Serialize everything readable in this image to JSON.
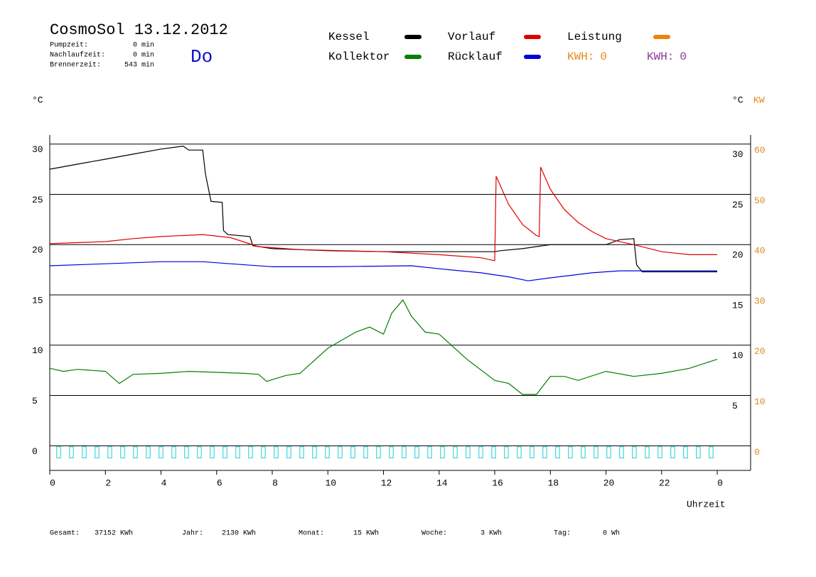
{
  "chart_data": {
    "type": "line",
    "title": "CosmoSol 13.12.2012",
    "weekday": "Do",
    "stats": [
      {
        "label": "Pumpzeit:",
        "value": "0 min"
      },
      {
        "label": "Nachlaufzeit:",
        "value": "0 min"
      },
      {
        "label": "Brennerzeit:",
        "value": "543 min"
      }
    ],
    "y_label": "°C",
    "y_label_right": "°C",
    "y2_label": "KW",
    "x_label": "Uhrzeit",
    "xlim": [
      0,
      25.2
    ],
    "xticks": [
      0,
      2,
      4,
      6,
      8,
      10,
      12,
      14,
      16,
      18,
      20,
      22,
      {
        "value": 24,
        "label": "0"
      }
    ],
    "ylim": [
      -2.45,
      30.9
    ],
    "yticks": [
      0,
      5,
      10,
      15,
      20,
      25,
      30
    ],
    "yticks_right": [
      5,
      10,
      15,
      20,
      25,
      30
    ],
    "y2lim": [
      -4.9,
      61.8
    ],
    "y2ticks": [
      0,
      10,
      20,
      30,
      40,
      50,
      60
    ],
    "y2color": "#e08a1e",
    "grid": true,
    "series": [
      {
        "name": "Kessel",
        "color": "#000000",
        "x": [
          0,
          1,
          2,
          3,
          4,
          4.8,
          5.0,
          5.5,
          5.6,
          5.8,
          6.2,
          6.25,
          6.4,
          7.2,
          7.3,
          8,
          10,
          12,
          16,
          16.2,
          17,
          18,
          20,
          20.5,
          21,
          21.1,
          21.3,
          24
        ],
        "values": [
          27.5,
          28,
          28.5,
          29,
          29.5,
          29.8,
          29.4,
          29.4,
          27,
          24.3,
          24.2,
          21.4,
          21,
          20.8,
          19.9,
          19.6,
          19.4,
          19.3,
          19.3,
          19.4,
          19.6,
          20.0,
          20.0,
          20.5,
          20.6,
          18,
          17.3,
          17.3
        ]
      },
      {
        "name": "Kollektor",
        "color": "#008000",
        "x": [
          0,
          0.5,
          1,
          1.5,
          2,
          2.5,
          3,
          4,
          5,
          6,
          7,
          7.5,
          7.8,
          8.5,
          9,
          10,
          11,
          11.5,
          12,
          12.3,
          12.7,
          13,
          13.5,
          14,
          15,
          16,
          16.5,
          17,
          17.5,
          18,
          18.5,
          19,
          20,
          21,
          22,
          23,
          24
        ],
        "values": [
          7.7,
          7.4,
          7.6,
          7.5,
          7.4,
          6.2,
          7.1,
          7.2,
          7.4,
          7.3,
          7.2,
          7.1,
          6.4,
          7.0,
          7.2,
          9.7,
          11.3,
          11.8,
          11.1,
          13.2,
          14.5,
          12.9,
          11.3,
          11.1,
          8.6,
          6.5,
          6.2,
          5.1,
          5.1,
          6.9,
          6.9,
          6.5,
          7.4,
          6.9,
          7.2,
          7.7,
          8.6
        ]
      },
      {
        "name": "Vorlauf",
        "color": "#e00000",
        "x": [
          0,
          2,
          3,
          4,
          5.5,
          6.5,
          7.5,
          9,
          12,
          14,
          15.5,
          16.0,
          16.05,
          16.5,
          17,
          17.5,
          17.6,
          17.65,
          18,
          18.5,
          19,
          19.5,
          20,
          21,
          22,
          23,
          24
        ],
        "values": [
          20.1,
          20.3,
          20.6,
          20.8,
          21.0,
          20.7,
          19.8,
          19.5,
          19.3,
          19.0,
          18.7,
          18.4,
          26.8,
          24,
          22,
          20.9,
          20.8,
          27.7,
          25.5,
          23.5,
          22.2,
          21.3,
          20.6,
          20.0,
          19.3,
          19.0,
          19.0
        ]
      },
      {
        "name": "Rücklauf",
        "color": "#0000e0",
        "x": [
          0,
          2,
          4,
          5.5,
          6.5,
          8,
          10,
          13,
          14,
          15.5,
          16.5,
          17.2,
          18,
          19.5,
          20.5,
          24
        ],
        "values": [
          17.9,
          18.1,
          18.3,
          18.3,
          18.1,
          17.8,
          17.8,
          17.9,
          17.6,
          17.2,
          16.8,
          16.4,
          16.7,
          17.2,
          17.4,
          17.4
        ]
      },
      {
        "name": "Leistung",
        "color": "#f08010",
        "x": [],
        "values": []
      }
    ],
    "kwh_labels": [
      {
        "label": "KWH:",
        "value": 0,
        "color": "#e08a1e"
      },
      {
        "label": "KWH:",
        "value": 0,
        "color": "#8a3a9a"
      }
    ],
    "pulses": {
      "color": "#40d8d8",
      "width": 0.14,
      "low": -1.2,
      "high": -0.1,
      "x": [
        0.25,
        0.71,
        1.17,
        1.63,
        2.09,
        2.55,
        3.01,
        3.47,
        3.93,
        4.39,
        4.85,
        5.31,
        5.77,
        6.23,
        6.69,
        7.15,
        7.61,
        8.07,
        8.53,
        8.99,
        9.45,
        9.91,
        10.37,
        10.83,
        11.29,
        11.75,
        12.21,
        12.67,
        13.13,
        13.59,
        14.05,
        14.51,
        14.97,
        15.43,
        15.89,
        16.35,
        16.81,
        17.27,
        17.73,
        18.19,
        18.65,
        19.11,
        19.57,
        20.03,
        20.49,
        20.95,
        21.41,
        21.87,
        22.33,
        22.79,
        23.25,
        23.71
      ]
    },
    "totals": [
      {
        "label": "Gesamt:",
        "value": "37152 KWh"
      },
      {
        "label": "Jahr:",
        "value": "2130 KWh"
      },
      {
        "label": "Monat:",
        "value": "15 KWh"
      },
      {
        "label": "Woche:",
        "value": "3 KWh"
      },
      {
        "label": "Tag:",
        "value": "0 Wh"
      }
    ]
  }
}
